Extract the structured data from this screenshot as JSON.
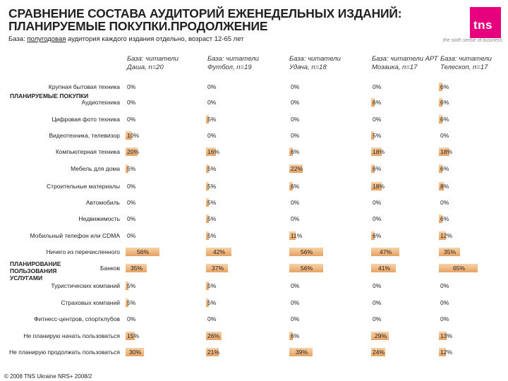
{
  "header": {
    "title_line1": "СРАВНЕНИЕ СОСТАВА АУДИТОРИЙ ЕЖЕНЕДЕЛЬНЫХ ИЗДАНИЙ:",
    "title_line2": "ПЛАНИРУЕМЫЕ ПОКУПКИ.ПРОДОЛЖЕНИЕ",
    "subtitle_prefix": "База: ",
    "subtitle_underlined": "полугодовая",
    "subtitle_rest": " аудитория каждого издания отдельно, возраст 12-65 лет"
  },
  "logo": {
    "text": "tns",
    "tagline": "the sixth sense of business",
    "color": "#e6007e"
  },
  "columns": [
    "База: читатели Даша, n=20",
    "База: читатели Футбол, n=19",
    "База: читатели Удача, n=18",
    "База: читатели АРТ Мозаика, n=17",
    "База: читатели Телескоп, n=17"
  ],
  "groups": [
    "ПЛАНИРУЕМЫЕ ПОКУПКИ",
    "ПЛАНИРОВАНИЕ ПОЛЬЗОВАНИЯ УСЛУГАМИ"
  ],
  "bar_color": "#e6a262",
  "rows": [
    {
      "label": "Крупная бытовая техника",
      "values": [
        0,
        0,
        0,
        0,
        6
      ]
    },
    {
      "label": "Аудиотехника",
      "values": [
        0,
        0,
        0,
        6,
        6
      ]
    },
    {
      "label": "Цифровая фото техника",
      "values": [
        0,
        5,
        0,
        0,
        6
      ]
    },
    {
      "label": "Видеотехника, телевизор",
      "values": [
        10,
        0,
        0,
        5,
        0
      ]
    },
    {
      "label": "Компьютерная техника",
      "values": [
        20,
        16,
        6,
        18,
        18
      ]
    },
    {
      "label": "Мебель для дома",
      "values": [
        5,
        5,
        22,
        6,
        6
      ]
    },
    {
      "label": "Строительные материалы",
      "values": [
        0,
        5,
        6,
        18,
        8
      ]
    },
    {
      "label": "Автомобиль",
      "values": [
        0,
        5,
        0,
        0,
        0
      ]
    },
    {
      "label": "Недвижимость",
      "values": [
        0,
        5,
        0,
        0,
        6
      ]
    },
    {
      "label": "Мобильный телефон или CDMA",
      "values": [
        0,
        5,
        11,
        6,
        12
      ]
    },
    {
      "label": "Ничего из перечисленного",
      "values": [
        56,
        42,
        56,
        47,
        35
      ]
    },
    {
      "label": "Банков",
      "values": [
        35,
        37,
        56,
        41,
        65
      ]
    },
    {
      "label": "Туристических компаний",
      "values": [
        5,
        5,
        0,
        0,
        0
      ]
    },
    {
      "label": "Страховых компаний",
      "values": [
        5,
        5,
        0,
        0,
        0
      ]
    },
    {
      "label": "Фитнесс-центров, спортклубов",
      "values": [
        0,
        0,
        0,
        0,
        0
      ]
    },
    {
      "label": "Не планирую начать пользоваться",
      "values": [
        15,
        26,
        6,
        29,
        13
      ]
    },
    {
      "label": "Не планирую продолжать пользоваться",
      "values": [
        30,
        21,
        39,
        24,
        12
      ]
    }
  ],
  "footer": "© 2008 TNS Ukraine NRS+ 2008/2"
}
